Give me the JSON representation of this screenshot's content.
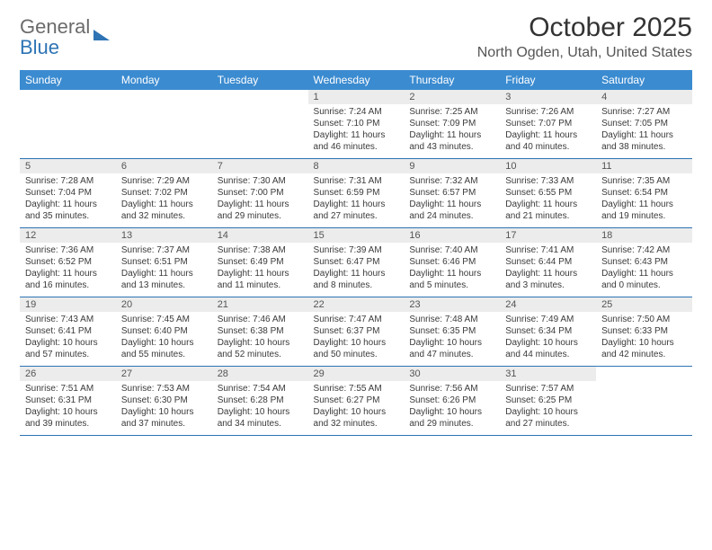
{
  "brand": {
    "line1": "General",
    "line2": "Blue"
  },
  "title": "October 2025",
  "location": "North Ogden, Utah, United States",
  "colors": {
    "header_bg": "#3b8bd0",
    "header_text": "#ffffff",
    "daynum_bg": "#ececec",
    "row_border": "#2e74b5",
    "logo_accent": "#2e74b5"
  },
  "day_names": [
    "Sunday",
    "Monday",
    "Tuesday",
    "Wednesday",
    "Thursday",
    "Friday",
    "Saturday"
  ],
  "weeks": [
    [
      {
        "empty": true
      },
      {
        "empty": true
      },
      {
        "empty": true
      },
      {
        "day": "1",
        "sunrise": "Sunrise: 7:24 AM",
        "sunset": "Sunset: 7:10 PM",
        "dl1": "Daylight: 11 hours",
        "dl2": "and 46 minutes."
      },
      {
        "day": "2",
        "sunrise": "Sunrise: 7:25 AM",
        "sunset": "Sunset: 7:09 PM",
        "dl1": "Daylight: 11 hours",
        "dl2": "and 43 minutes."
      },
      {
        "day": "3",
        "sunrise": "Sunrise: 7:26 AM",
        "sunset": "Sunset: 7:07 PM",
        "dl1": "Daylight: 11 hours",
        "dl2": "and 40 minutes."
      },
      {
        "day": "4",
        "sunrise": "Sunrise: 7:27 AM",
        "sunset": "Sunset: 7:05 PM",
        "dl1": "Daylight: 11 hours",
        "dl2": "and 38 minutes."
      }
    ],
    [
      {
        "day": "5",
        "sunrise": "Sunrise: 7:28 AM",
        "sunset": "Sunset: 7:04 PM",
        "dl1": "Daylight: 11 hours",
        "dl2": "and 35 minutes."
      },
      {
        "day": "6",
        "sunrise": "Sunrise: 7:29 AM",
        "sunset": "Sunset: 7:02 PM",
        "dl1": "Daylight: 11 hours",
        "dl2": "and 32 minutes."
      },
      {
        "day": "7",
        "sunrise": "Sunrise: 7:30 AM",
        "sunset": "Sunset: 7:00 PM",
        "dl1": "Daylight: 11 hours",
        "dl2": "and 29 minutes."
      },
      {
        "day": "8",
        "sunrise": "Sunrise: 7:31 AM",
        "sunset": "Sunset: 6:59 PM",
        "dl1": "Daylight: 11 hours",
        "dl2": "and 27 minutes."
      },
      {
        "day": "9",
        "sunrise": "Sunrise: 7:32 AM",
        "sunset": "Sunset: 6:57 PM",
        "dl1": "Daylight: 11 hours",
        "dl2": "and 24 minutes."
      },
      {
        "day": "10",
        "sunrise": "Sunrise: 7:33 AM",
        "sunset": "Sunset: 6:55 PM",
        "dl1": "Daylight: 11 hours",
        "dl2": "and 21 minutes."
      },
      {
        "day": "11",
        "sunrise": "Sunrise: 7:35 AM",
        "sunset": "Sunset: 6:54 PM",
        "dl1": "Daylight: 11 hours",
        "dl2": "and 19 minutes."
      }
    ],
    [
      {
        "day": "12",
        "sunrise": "Sunrise: 7:36 AM",
        "sunset": "Sunset: 6:52 PM",
        "dl1": "Daylight: 11 hours",
        "dl2": "and 16 minutes."
      },
      {
        "day": "13",
        "sunrise": "Sunrise: 7:37 AM",
        "sunset": "Sunset: 6:51 PM",
        "dl1": "Daylight: 11 hours",
        "dl2": "and 13 minutes."
      },
      {
        "day": "14",
        "sunrise": "Sunrise: 7:38 AM",
        "sunset": "Sunset: 6:49 PM",
        "dl1": "Daylight: 11 hours",
        "dl2": "and 11 minutes."
      },
      {
        "day": "15",
        "sunrise": "Sunrise: 7:39 AM",
        "sunset": "Sunset: 6:47 PM",
        "dl1": "Daylight: 11 hours",
        "dl2": "and 8 minutes."
      },
      {
        "day": "16",
        "sunrise": "Sunrise: 7:40 AM",
        "sunset": "Sunset: 6:46 PM",
        "dl1": "Daylight: 11 hours",
        "dl2": "and 5 minutes."
      },
      {
        "day": "17",
        "sunrise": "Sunrise: 7:41 AM",
        "sunset": "Sunset: 6:44 PM",
        "dl1": "Daylight: 11 hours",
        "dl2": "and 3 minutes."
      },
      {
        "day": "18",
        "sunrise": "Sunrise: 7:42 AM",
        "sunset": "Sunset: 6:43 PM",
        "dl1": "Daylight: 11 hours",
        "dl2": "and 0 minutes."
      }
    ],
    [
      {
        "day": "19",
        "sunrise": "Sunrise: 7:43 AM",
        "sunset": "Sunset: 6:41 PM",
        "dl1": "Daylight: 10 hours",
        "dl2": "and 57 minutes."
      },
      {
        "day": "20",
        "sunrise": "Sunrise: 7:45 AM",
        "sunset": "Sunset: 6:40 PM",
        "dl1": "Daylight: 10 hours",
        "dl2": "and 55 minutes."
      },
      {
        "day": "21",
        "sunrise": "Sunrise: 7:46 AM",
        "sunset": "Sunset: 6:38 PM",
        "dl1": "Daylight: 10 hours",
        "dl2": "and 52 minutes."
      },
      {
        "day": "22",
        "sunrise": "Sunrise: 7:47 AM",
        "sunset": "Sunset: 6:37 PM",
        "dl1": "Daylight: 10 hours",
        "dl2": "and 50 minutes."
      },
      {
        "day": "23",
        "sunrise": "Sunrise: 7:48 AM",
        "sunset": "Sunset: 6:35 PM",
        "dl1": "Daylight: 10 hours",
        "dl2": "and 47 minutes."
      },
      {
        "day": "24",
        "sunrise": "Sunrise: 7:49 AM",
        "sunset": "Sunset: 6:34 PM",
        "dl1": "Daylight: 10 hours",
        "dl2": "and 44 minutes."
      },
      {
        "day": "25",
        "sunrise": "Sunrise: 7:50 AM",
        "sunset": "Sunset: 6:33 PM",
        "dl1": "Daylight: 10 hours",
        "dl2": "and 42 minutes."
      }
    ],
    [
      {
        "day": "26",
        "sunrise": "Sunrise: 7:51 AM",
        "sunset": "Sunset: 6:31 PM",
        "dl1": "Daylight: 10 hours",
        "dl2": "and 39 minutes."
      },
      {
        "day": "27",
        "sunrise": "Sunrise: 7:53 AM",
        "sunset": "Sunset: 6:30 PM",
        "dl1": "Daylight: 10 hours",
        "dl2": "and 37 minutes."
      },
      {
        "day": "28",
        "sunrise": "Sunrise: 7:54 AM",
        "sunset": "Sunset: 6:28 PM",
        "dl1": "Daylight: 10 hours",
        "dl2": "and 34 minutes."
      },
      {
        "day": "29",
        "sunrise": "Sunrise: 7:55 AM",
        "sunset": "Sunset: 6:27 PM",
        "dl1": "Daylight: 10 hours",
        "dl2": "and 32 minutes."
      },
      {
        "day": "30",
        "sunrise": "Sunrise: 7:56 AM",
        "sunset": "Sunset: 6:26 PM",
        "dl1": "Daylight: 10 hours",
        "dl2": "and 29 minutes."
      },
      {
        "day": "31",
        "sunrise": "Sunrise: 7:57 AM",
        "sunset": "Sunset: 6:25 PM",
        "dl1": "Daylight: 10 hours",
        "dl2": "and 27 minutes."
      },
      {
        "empty": true
      }
    ]
  ]
}
